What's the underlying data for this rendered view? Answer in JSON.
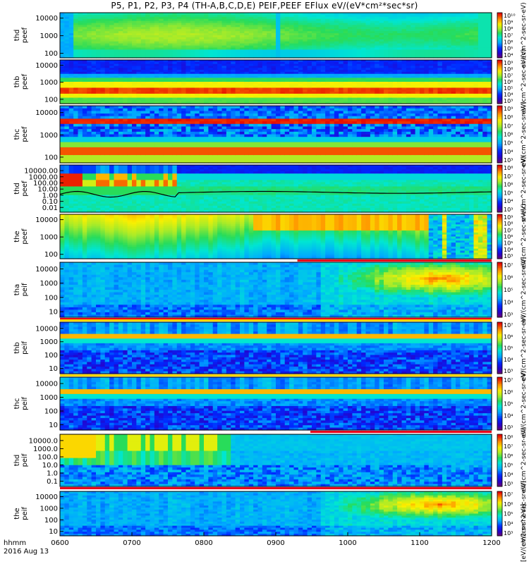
{
  "title": "P5, P1, P2, P3, P4 (TH-A,B,C,D,E) PEIF,PEEF EFlux eV/(eV*cm²*sec*sr)",
  "time_axis": {
    "ticks": [
      "0600",
      "0700",
      "0800",
      "0900",
      "1000",
      "1100",
      "1200"
    ],
    "row1_label": "hhmm",
    "row2_label": "2016 Aug 13"
  },
  "colorbar_unit_label": "[eV/(cm2-s-sr-eV)]",
  "colors": {
    "background": "#ffffff",
    "status_bar": "#e8001a",
    "status_bar_dark": "#000000",
    "separator_yellow": "#ffd700"
  },
  "chart_data": [
    {
      "type": "heatmap",
      "probe": "thd",
      "product": "peef",
      "ylabel_line1": "thd",
      "ylabel_line2": "peef",
      "yticks": [
        "10000",
        "1000",
        "100"
      ],
      "cbar_ticks": [
        "10¹⁰",
        "10⁹",
        "10⁸",
        "10⁷",
        "10⁶",
        "10⁵",
        "10⁴"
      ],
      "cbar_unit": "eV/(cm^2-sec-sr-eV)",
      "pattern": "smooth",
      "base": 0.45,
      "band_center": 0.55,
      "band_strength": 0.1,
      "early_blue": true,
      "spike_x": 0.505
    },
    {
      "type": "heatmap",
      "probe": "thb",
      "product": "peef",
      "ylabel_line1": "thb",
      "ylabel_line2": "peef",
      "yticks": [
        "10000",
        "1000",
        "100"
      ],
      "cbar_ticks": [
        "10⁹",
        "10⁸",
        "10⁷",
        "10⁶",
        "10⁵",
        "10⁴",
        "10³"
      ],
      "cbar_unit": "eV/(cm^2-sec-sr-eV)",
      "pattern": "bands",
      "base": 0.15
    },
    {
      "type": "heatmap",
      "probe": "thc",
      "product": "peef",
      "ylabel_line1": "thc",
      "ylabel_line2": "peef",
      "yticks": [
        "10000",
        "1000",
        "100"
      ],
      "cbar_ticks": [
        "10⁹",
        "10⁸",
        "10⁷",
        "10⁶",
        "10⁵",
        "10⁴",
        "10³"
      ],
      "cbar_unit": "eV/(cm^2-sec-sr-eV)",
      "pattern": "bands_noisy",
      "base": 0.15
    },
    {
      "type": "heatmap",
      "probe": "thd",
      "product": "peef",
      "ylabel_line1": "thd",
      "ylabel_line2": "peef",
      "yticks": [
        "10000.00",
        "1000.00",
        "100.00",
        "10.00",
        "1.00",
        "0.10",
        "0.01"
      ],
      "cbar_ticks": [
        "10⁸",
        "10⁷",
        "10⁶",
        "10⁵",
        "10⁴",
        "10³"
      ],
      "cbar_unit": "eV/(cm^2-sec-sr-eV)",
      "pattern": "thd_peef",
      "base": 0.3,
      "line": true
    },
    {
      "type": "heatmap",
      "probe": "the",
      "product": "peef",
      "ylabel_line1": "the",
      "ylabel_line2": "peef",
      "yticks": [
        "10000",
        "1000",
        "100"
      ],
      "cbar_ticks": [
        "10⁹",
        "10⁸",
        "10⁷",
        "10⁶",
        "10⁵",
        "10⁴",
        "10³"
      ],
      "cbar_unit": "eV/(cm^2-sec-sr-eV)",
      "pattern": "the_peef",
      "base": 0.55
    },
    {
      "type": "heatmap",
      "probe": "tha",
      "product": "peif",
      "ylabel_line1": "tha",
      "ylabel_line2": "peif",
      "yticks": [
        "10000",
        "1000",
        "100",
        "10"
      ],
      "cbar_ticks": [
        "10⁷",
        "10⁶",
        "10⁵",
        "10⁴",
        "10³"
      ],
      "cbar_unit": "eV/(cm^2-sec-sr-eV)",
      "pattern": "ion_warm",
      "base": 0.35
    },
    {
      "type": "heatmap",
      "probe": "thb",
      "product": "peif",
      "ylabel_line1": "thb",
      "ylabel_line2": "peif",
      "yticks": [
        "10000",
        "1000",
        "100",
        "10"
      ],
      "cbar_ticks": [
        "10⁷",
        "10⁶",
        "10⁵",
        "10⁴",
        "10³"
      ],
      "cbar_unit": "eV/(cm^2-sec-sr-eV)",
      "pattern": "ion_band",
      "base": 0.2
    },
    {
      "type": "heatmap",
      "probe": "thc",
      "product": "peif",
      "ylabel_line1": "thc",
      "ylabel_line2": "peif",
      "yticks": [
        "10000",
        "1000",
        "100",
        "10"
      ],
      "cbar_ticks": [
        "10⁷",
        "10⁶",
        "10⁵",
        "10⁴",
        "10³"
      ],
      "cbar_unit": "eV/(cm^2-sec-sr-eV)",
      "pattern": "ion_band",
      "base": 0.2
    },
    {
      "type": "heatmap",
      "probe": "thd",
      "product": "peif",
      "ylabel_line1": "thd",
      "ylabel_line2": "peif",
      "yticks": [
        "10000.0",
        "1000.0",
        "100.0",
        "10.0",
        "1.0",
        "0.1"
      ],
      "cbar_ticks": [
        "10⁸",
        "10⁷",
        "10⁶",
        "10⁵",
        "10⁴",
        "10³"
      ],
      "cbar_unit": "eV/(cm^2-sec-sr-eV)",
      "pattern": "thd_peif",
      "base": 0.4
    },
    {
      "type": "heatmap",
      "probe": "the",
      "product": "peif",
      "ylabel_line1": "the",
      "ylabel_line2": "peif",
      "yticks": [
        "10000",
        "1000",
        "100",
        "10"
      ],
      "cbar_ticks": [
        "10⁷",
        "10⁶",
        "10⁵",
        "10⁴",
        "10³"
      ],
      "cbar_unit": "eV/(cm^2-sec-sr-eV)",
      "pattern": "ion_warm",
      "base": 0.35
    }
  ]
}
